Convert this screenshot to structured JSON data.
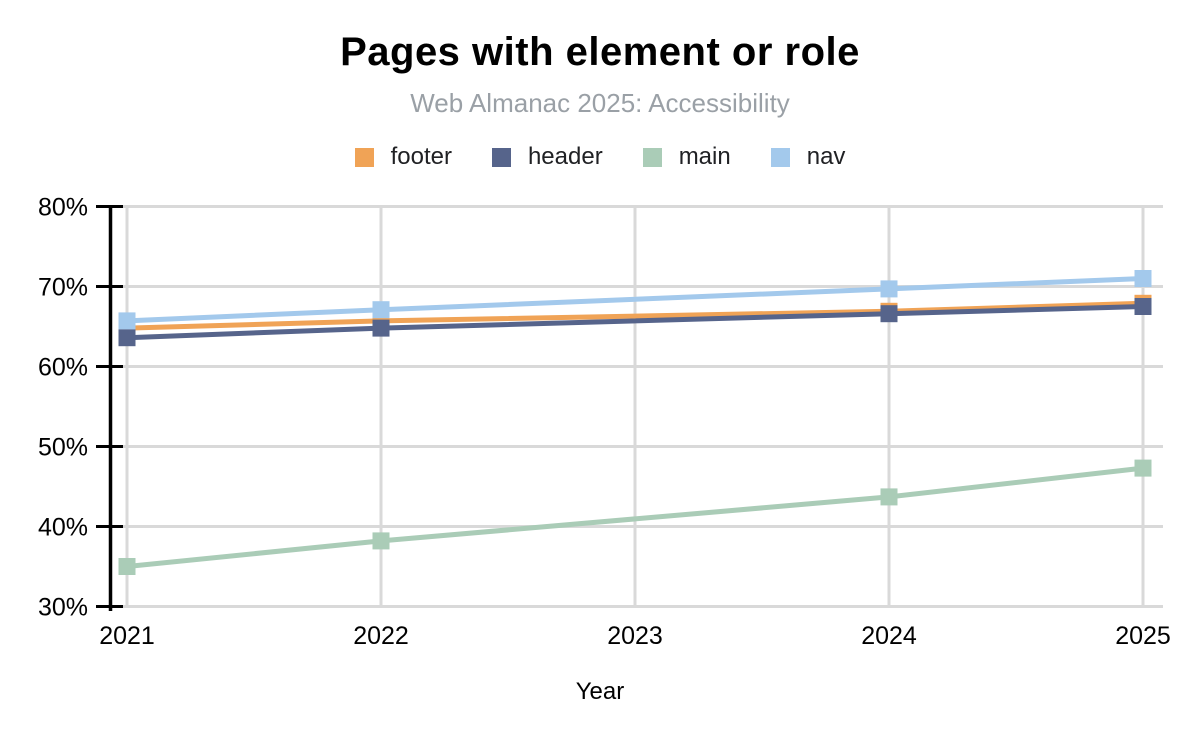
{
  "title": "Pages with element or role",
  "subtitle": "Web Almanac 2025: Accessibility",
  "xlabel": "Year",
  "chart_data": {
    "type": "line",
    "x": [
      2021,
      2022,
      2023,
      2024,
      2025
    ],
    "x_tick_labels": [
      "2021",
      "2022",
      "2023",
      "2024",
      "2025"
    ],
    "y_tick_labels": [
      "80%",
      "70%",
      "60%",
      "50%",
      "40%",
      "30%"
    ],
    "y_ticks": [
      80,
      70,
      60,
      50,
      40,
      30
    ],
    "ylim": [
      30,
      80
    ],
    "xlabel": "Year",
    "ylabel": "",
    "grid": true,
    "legend_position": "top",
    "marker": "square",
    "title": "Pages with element or role",
    "subtitle": "Web Almanac 2025: Accessibility",
    "series": [
      {
        "name": "footer",
        "color": "#F0A356",
        "values": [
          64.8,
          65.7,
          null,
          66.9,
          67.9
        ]
      },
      {
        "name": "header",
        "color": "#56648B",
        "values": [
          63.6,
          64.8,
          null,
          66.6,
          67.5
        ]
      },
      {
        "name": "main",
        "color": "#AACCB7",
        "values": [
          35.0,
          38.2,
          null,
          43.7,
          47.3
        ]
      },
      {
        "name": "nav",
        "color": "#A3C9EC",
        "values": [
          65.7,
          67.1,
          null,
          69.7,
          71.0
        ]
      }
    ],
    "colors": {
      "grid": "#D9D9D9",
      "axis": "#000000",
      "subtitle": "#9AA0A6"
    }
  }
}
